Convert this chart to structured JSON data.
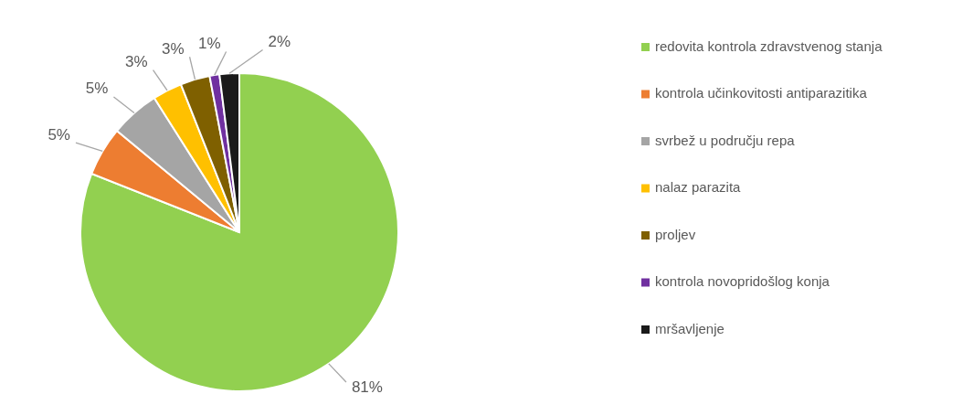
{
  "chart_data": {
    "type": "pie",
    "categories": [
      "redovita kontrola zdravstvenog stanja",
      "kontrola učinkovitosti antiparazitika",
      "svrbež u području repa",
      "nalaz parazita",
      "proljev",
      "kontrola novopridošlog konja",
      "mršavljenje"
    ],
    "values": [
      81,
      5,
      5,
      3,
      3,
      1,
      2
    ],
    "value_labels": [
      "81%",
      "5%",
      "5%",
      "3%",
      "3%",
      "1%",
      "2%"
    ],
    "colors": [
      "#92d050",
      "#ed7d31",
      "#a5a5a5",
      "#ffc000",
      "#7f6000",
      "#7030a0",
      "#1a1a1a"
    ],
    "legend": "right"
  }
}
